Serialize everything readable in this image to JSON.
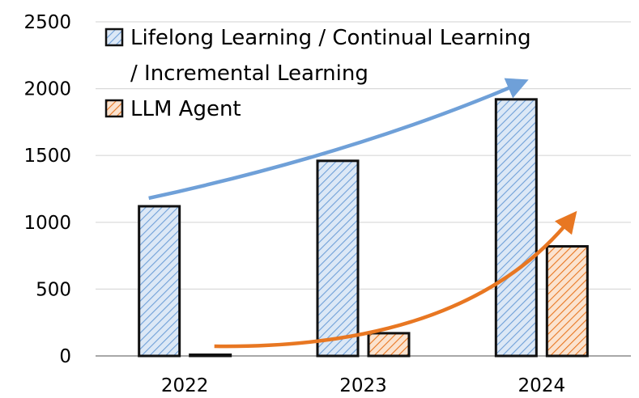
{
  "chart_data": {
    "type": "bar",
    "categories": [
      "2022",
      "2023",
      "2024"
    ],
    "series": [
      {
        "name": "Lifelong Learning / Continual Learning / Incremental Learning",
        "legend_lines": [
          "Lifelong Learning / Continual Learning",
          "/ Incremental Learning"
        ],
        "values": [
          1120,
          1460,
          1920
        ],
        "color": "#6fa0d8",
        "fill": "#dce8f6"
      },
      {
        "name": "LLM Agent",
        "legend_lines": [
          "LLM Agent"
        ],
        "values": [
          0,
          170,
          820
        ],
        "color": "#e87722",
        "fill": "#fbe3cf"
      }
    ],
    "yticks": [
      0,
      500,
      1000,
      1500,
      2000,
      2500
    ],
    "ylim": [
      0,
      2500
    ],
    "grid": true,
    "legend_position": "top-left",
    "trend_arrows": [
      {
        "series": "Lifelong Learning / Continual Learning / Incremental Learning",
        "color": "#6fa0d8"
      },
      {
        "series": "LLM Agent",
        "color": "#e87722"
      }
    ]
  }
}
